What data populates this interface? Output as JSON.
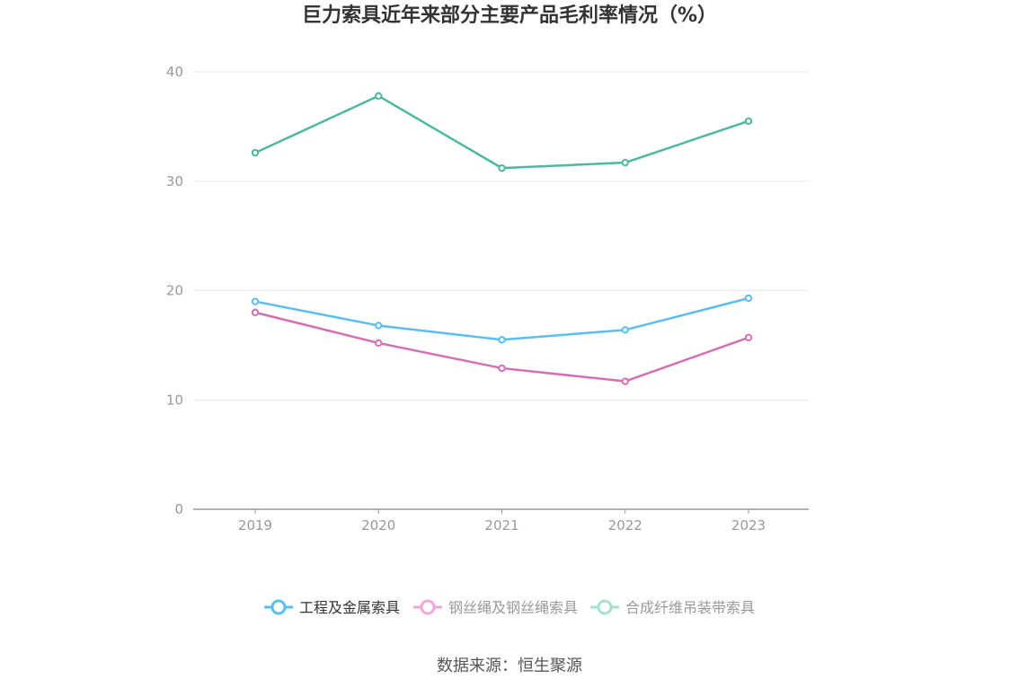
{
  "chart_data": {
    "type": "line",
    "title": "巨力索具近年来部分主要产品毛利率情况（%）",
    "categories": [
      "2019",
      "2020",
      "2021",
      "2022",
      "2023"
    ],
    "ylim": [
      0,
      40
    ],
    "yticks": [
      "0",
      "10",
      "20",
      "30",
      "40"
    ],
    "grid": true,
    "legend_position": "bottom",
    "series": [
      {
        "name": "工程及金属索具",
        "color": "#5bbdf0",
        "values": [
          19.0,
          16.8,
          15.5,
          16.4,
          19.3
        ]
      },
      {
        "name": "钢丝绳及钢丝绳索具",
        "color": "#d46fb4",
        "values": [
          18.0,
          15.2,
          12.9,
          11.7,
          15.7
        ]
      },
      {
        "name": "合成纤维吊装带索具",
        "color": "#4db89e",
        "values": [
          32.6,
          37.8,
          31.2,
          31.7,
          35.5
        ]
      }
    ]
  },
  "source": "数据来源：恒生聚源"
}
